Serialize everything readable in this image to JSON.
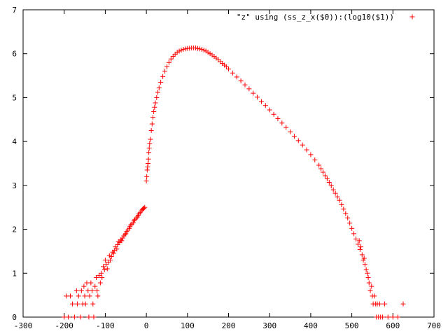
{
  "chart_data": {
    "type": "scatter",
    "title": "",
    "xlabel": "",
    "ylabel": "",
    "xlim": [
      -300,
      700
    ],
    "ylim": [
      0,
      7
    ],
    "x_ticks": [
      -300,
      -200,
      -100,
      0,
      100,
      200,
      300,
      400,
      500,
      600,
      700
    ],
    "y_ticks": [
      0,
      1,
      2,
      3,
      4,
      5,
      6,
      7
    ],
    "grid": false,
    "legend_position": "top-right",
    "marker": "plus",
    "series": [
      {
        "name": "\"z\" using (ss_z_x($0)):(log10($1))",
        "color": "#ff0000",
        "points": [
          [
            -200,
            0.0
          ],
          [
            -195,
            0.48
          ],
          [
            -190,
            0.0
          ],
          [
            -185,
            0.48
          ],
          [
            -180,
            0.3
          ],
          [
            -175,
            0.0
          ],
          [
            -170,
            0.6
          ],
          [
            -168,
            0.3
          ],
          [
            -165,
            0.48
          ],
          [
            -160,
            0.0
          ],
          [
            -158,
            0.6
          ],
          [
            -155,
            0.3
          ],
          [
            -152,
            0.7
          ],
          [
            -150,
            0.48
          ],
          [
            -148,
            0.3
          ],
          [
            -145,
            0.78
          ],
          [
            -142,
            0.6
          ],
          [
            -140,
            0.0
          ],
          [
            -138,
            0.48
          ],
          [
            -135,
            0.78
          ],
          [
            -132,
            0.6
          ],
          [
            -130,
            0.3
          ],
          [
            -128,
            0.0
          ],
          [
            -125,
            0.7
          ],
          [
            -122,
            0.9
          ],
          [
            -120,
            0.6
          ],
          [
            -118,
            0.48
          ],
          [
            -115,
            0.95
          ],
          [
            -112,
            0.78
          ],
          [
            -110,
            1.0
          ],
          [
            -108,
            0.9
          ],
          [
            -105,
            1.15
          ],
          [
            -102,
            1.08
          ],
          [
            -100,
            1.3
          ],
          [
            -98,
            1.2
          ],
          [
            -95,
            1.1
          ],
          [
            -92,
            1.25
          ],
          [
            -90,
            1.4
          ],
          [
            -88,
            1.3
          ],
          [
            -85,
            1.38
          ],
          [
            -82,
            1.48
          ],
          [
            -80,
            1.45
          ],
          [
            -78,
            1.52
          ],
          [
            -75,
            1.6
          ],
          [
            -72,
            1.55
          ],
          [
            -70,
            1.65
          ],
          [
            -68,
            1.72
          ],
          [
            -65,
            1.7
          ],
          [
            -62,
            1.76
          ],
          [
            -60,
            1.74
          ],
          [
            -58,
            1.8
          ],
          [
            -55,
            1.85
          ],
          [
            -52,
            1.88
          ],
          [
            -50,
            1.9
          ],
          [
            -48,
            1.95
          ],
          [
            -45,
            1.98
          ],
          [
            -42,
            2.02
          ],
          [
            -40,
            2.06
          ],
          [
            -38,
            2.1
          ],
          [
            -35,
            2.12
          ],
          [
            -32,
            2.15
          ],
          [
            -30,
            2.2
          ],
          [
            -28,
            2.22
          ],
          [
            -25,
            2.25
          ],
          [
            -22,
            2.28
          ],
          [
            -20,
            2.32
          ],
          [
            -18,
            2.35
          ],
          [
            -15,
            2.38
          ],
          [
            -12,
            2.42
          ],
          [
            -10,
            2.45
          ],
          [
            -8,
            2.47
          ],
          [
            -6,
            2.48
          ],
          [
            -4,
            2.5
          ],
          [
            0,
            3.1
          ],
          [
            1,
            3.2
          ],
          [
            2,
            3.35
          ],
          [
            3,
            3.42
          ],
          [
            4,
            3.5
          ],
          [
            5,
            3.6
          ],
          [
            6,
            3.75
          ],
          [
            7,
            3.85
          ],
          [
            8,
            3.95
          ],
          [
            10,
            4.05
          ],
          [
            12,
            4.25
          ],
          [
            14,
            4.4
          ],
          [
            16,
            4.55
          ],
          [
            18,
            4.68
          ],
          [
            20,
            4.78
          ],
          [
            22,
            4.88
          ],
          [
            25,
            5.0
          ],
          [
            28,
            5.12
          ],
          [
            31,
            5.22
          ],
          [
            35,
            5.35
          ],
          [
            40,
            5.48
          ],
          [
            45,
            5.6
          ],
          [
            50,
            5.7
          ],
          [
            55,
            5.8
          ],
          [
            60,
            5.88
          ],
          [
            65,
            5.94
          ],
          [
            70,
            5.99
          ],
          [
            75,
            6.03
          ],
          [
            80,
            6.06
          ],
          [
            85,
            6.08
          ],
          [
            90,
            6.1
          ],
          [
            95,
            6.11
          ],
          [
            100,
            6.12
          ],
          [
            105,
            6.125
          ],
          [
            110,
            6.13
          ],
          [
            115,
            6.13
          ],
          [
            120,
            6.13
          ],
          [
            125,
            6.12
          ],
          [
            130,
            6.11
          ],
          [
            135,
            6.1
          ],
          [
            140,
            6.08
          ],
          [
            145,
            6.06
          ],
          [
            150,
            6.03
          ],
          [
            155,
            6.0
          ],
          [
            160,
            5.97
          ],
          [
            165,
            5.94
          ],
          [
            170,
            5.9
          ],
          [
            175,
            5.86
          ],
          [
            180,
            5.82
          ],
          [
            185,
            5.78
          ],
          [
            190,
            5.74
          ],
          [
            195,
            5.7
          ],
          [
            200,
            5.65
          ],
          [
            210,
            5.56
          ],
          [
            220,
            5.47
          ],
          [
            230,
            5.38
          ],
          [
            240,
            5.29
          ],
          [
            250,
            5.2
          ],
          [
            260,
            5.1
          ],
          [
            270,
            5.01
          ],
          [
            280,
            4.91
          ],
          [
            290,
            4.82
          ],
          [
            300,
            4.72
          ],
          [
            310,
            4.62
          ],
          [
            320,
            4.52
          ],
          [
            330,
            4.42
          ],
          [
            340,
            4.32
          ],
          [
            350,
            4.22
          ],
          [
            360,
            4.12
          ],
          [
            370,
            4.02
          ],
          [
            380,
            3.92
          ],
          [
            390,
            3.81
          ],
          [
            400,
            3.7
          ],
          [
            410,
            3.58
          ],
          [
            420,
            3.46
          ],
          [
            425,
            3.38
          ],
          [
            430,
            3.3
          ],
          [
            435,
            3.22
          ],
          [
            440,
            3.15
          ],
          [
            445,
            3.07
          ],
          [
            450,
            2.99
          ],
          [
            455,
            2.9
          ],
          [
            460,
            2.82
          ],
          [
            465,
            2.74
          ],
          [
            470,
            2.66
          ],
          [
            475,
            2.56
          ],
          [
            480,
            2.46
          ],
          [
            485,
            2.36
          ],
          [
            490,
            2.26
          ],
          [
            495,
            2.14
          ],
          [
            500,
            2.02
          ],
          [
            505,
            1.9
          ],
          [
            510,
            1.78
          ],
          [
            515,
            1.66
          ],
          [
            518,
            1.74
          ],
          [
            520,
            1.54
          ],
          [
            522,
            1.6
          ],
          [
            525,
            1.42
          ],
          [
            528,
            1.3
          ],
          [
            530,
            1.34
          ],
          [
            532,
            1.2
          ],
          [
            535,
            1.08
          ],
          [
            538,
            1.0
          ],
          [
            540,
            0.9
          ],
          [
            542,
            0.78
          ],
          [
            545,
            0.6
          ],
          [
            548,
            0.7
          ],
          [
            550,
            0.48
          ],
          [
            552,
            0.3
          ],
          [
            555,
            0.48
          ],
          [
            558,
            0.3
          ],
          [
            560,
            0.0
          ],
          [
            562,
            0.3
          ],
          [
            565,
            0.0
          ],
          [
            568,
            0.3
          ],
          [
            570,
            0.0
          ],
          [
            575,
            0.0
          ],
          [
            580,
            0.3
          ],
          [
            588,
            0.0
          ],
          [
            600,
            0.0
          ],
          [
            612,
            0.0
          ],
          [
            625,
            0.3
          ]
        ]
      }
    ]
  }
}
